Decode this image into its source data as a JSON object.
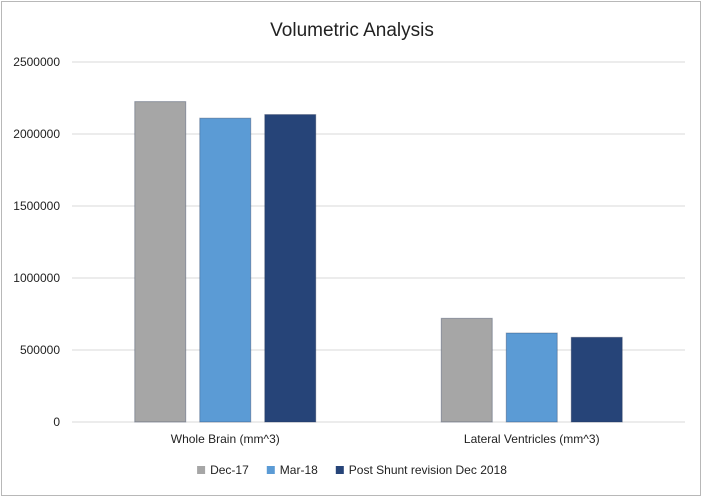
{
  "chart_data": {
    "type": "bar",
    "title": "Volumetric Analysis",
    "categories": [
      "Whole Brain (mm^3)",
      "Lateral Ventricles (mm^3)"
    ],
    "series": [
      {
        "name": "Dec-17",
        "values": [
          2225000,
          720000
        ],
        "color": "#a6a6a6"
      },
      {
        "name": "Mar-18",
        "values": [
          2110000,
          618000
        ],
        "color": "#5b9bd5"
      },
      {
        "name": "Post Shunt revision Dec 2018",
        "values": [
          2135000,
          588000
        ],
        "color": "#264478"
      }
    ],
    "ylim": [
      0,
      2500000
    ],
    "yticks": [
      0,
      500000,
      1000000,
      1500000,
      2000000,
      2500000
    ],
    "ytick_labels": [
      "0",
      "500000",
      "1000000",
      "1500000",
      "2000000",
      "2500000"
    ],
    "grid": true,
    "legend_position": "bottom"
  }
}
